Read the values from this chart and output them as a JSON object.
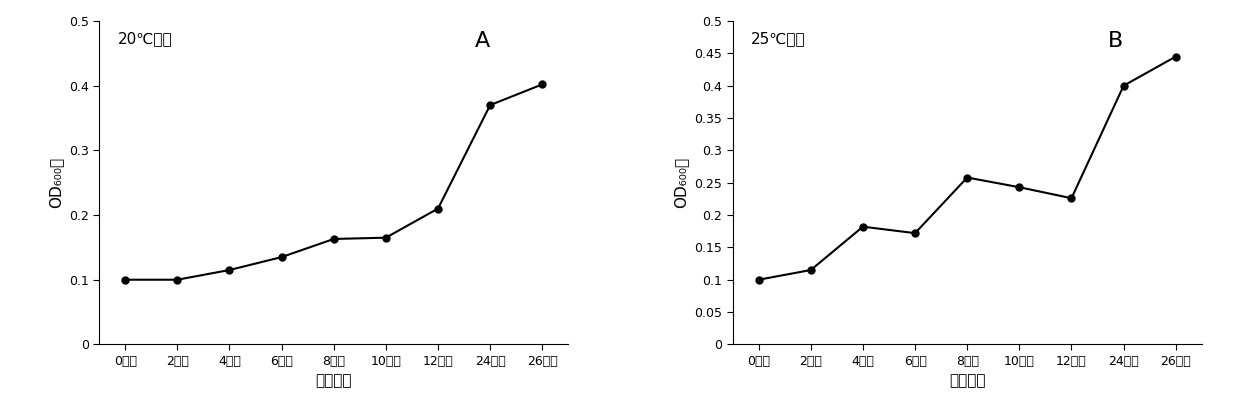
{
  "chart_A": {
    "title": "20℃培养",
    "label": "A",
    "x_labels": [
      "0小时",
      "2小时",
      "4小时",
      "6小时",
      "8小时",
      "10小时",
      "12小时",
      "24小时",
      "26小时"
    ],
    "y_values": [
      0.1,
      0.1,
      0.115,
      0.135,
      0.163,
      0.165,
      0.21,
      0.37,
      0.402
    ],
    "xlabel": "培养时间",
    "ylim": [
      0,
      0.5
    ],
    "yticks": [
      0,
      0.1,
      0.2,
      0.3,
      0.4,
      0.5
    ],
    "ytick_labels": [
      "0",
      "0.1",
      "0.2",
      "0.3",
      "0.4",
      "0.5"
    ]
  },
  "chart_B": {
    "title": "25℃培养",
    "label": "B",
    "x_labels": [
      "0小时",
      "2小时",
      "4小时",
      "6小时",
      "8小时",
      "10小时",
      "12小时",
      "24小时",
      "26小时"
    ],
    "y_values": [
      0.1,
      0.115,
      0.182,
      0.172,
      0.258,
      0.243,
      0.226,
      0.4,
      0.445
    ],
    "xlabel": "培养时间",
    "ylim": [
      0,
      0.5
    ],
    "yticks": [
      0,
      0.05,
      0.1,
      0.15,
      0.2,
      0.25,
      0.3,
      0.35,
      0.4,
      0.45,
      0.5
    ],
    "ytick_labels": [
      "0",
      "0.05",
      "0.1",
      "0.15",
      "0.2",
      "0.25",
      "0.3",
      "0.35",
      "0.4",
      "0.45",
      "0.5"
    ]
  },
  "line_color": "#000000",
  "marker": "o",
  "marker_size": 5,
  "marker_facecolor": "#000000",
  "line_width": 1.5,
  "font_size_title": 11,
  "font_size_label": 11,
  "font_size_tick": 9,
  "font_size_panel": 16,
  "background_color": "#ffffff"
}
